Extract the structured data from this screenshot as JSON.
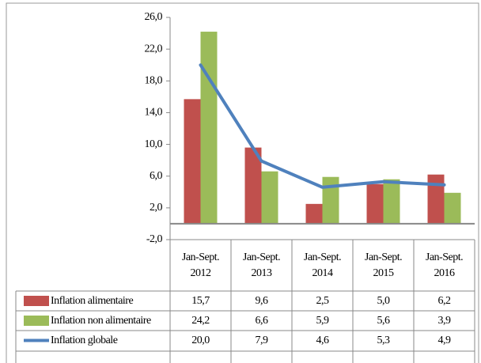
{
  "chart_data": {
    "type": "bar",
    "categories": [
      "Jan-Sept. 2012",
      "Jan-Sept. 2013",
      "Jan-Sept. 2014",
      "Jan-Sept. 2015",
      "Jan-Sept. 2016"
    ],
    "series": [
      {
        "name": "Inflation alimentaire",
        "type": "bar",
        "color": "#c0504d",
        "values": [
          15.7,
          9.6,
          2.5,
          5.0,
          6.2
        ],
        "value_labels": [
          "15,7",
          "9,6",
          "2,5",
          "5,0",
          "6,2"
        ]
      },
      {
        "name": "Inflation non alimentaire",
        "type": "bar",
        "color": "#9bbb59",
        "values": [
          24.2,
          6.6,
          5.9,
          5.6,
          3.9
        ],
        "value_labels": [
          "24,2",
          "6,6",
          "5,9",
          "5,6",
          "3,9"
        ]
      },
      {
        "name": "Inflation globale",
        "type": "line",
        "color": "#4f81bd",
        "values": [
          20.0,
          7.9,
          4.6,
          5.3,
          4.9
        ],
        "value_labels": [
          "20,0",
          "7,9",
          "4,6",
          "5,3",
          "4,9"
        ]
      }
    ],
    "ylim": [
      -2,
      26
    ],
    "yticks": [
      {
        "value": -2,
        "label": "-2,0"
      },
      {
        "value": 2,
        "label": "2,0"
      },
      {
        "value": 6,
        "label": "6,0"
      },
      {
        "value": 10,
        "label": "10,0"
      },
      {
        "value": 14,
        "label": "14,0"
      },
      {
        "value": 18,
        "label": "18,0"
      },
      {
        "value": 22,
        "label": "22,0"
      },
      {
        "value": 26,
        "label": "26,0"
      }
    ],
    "grid": false
  }
}
